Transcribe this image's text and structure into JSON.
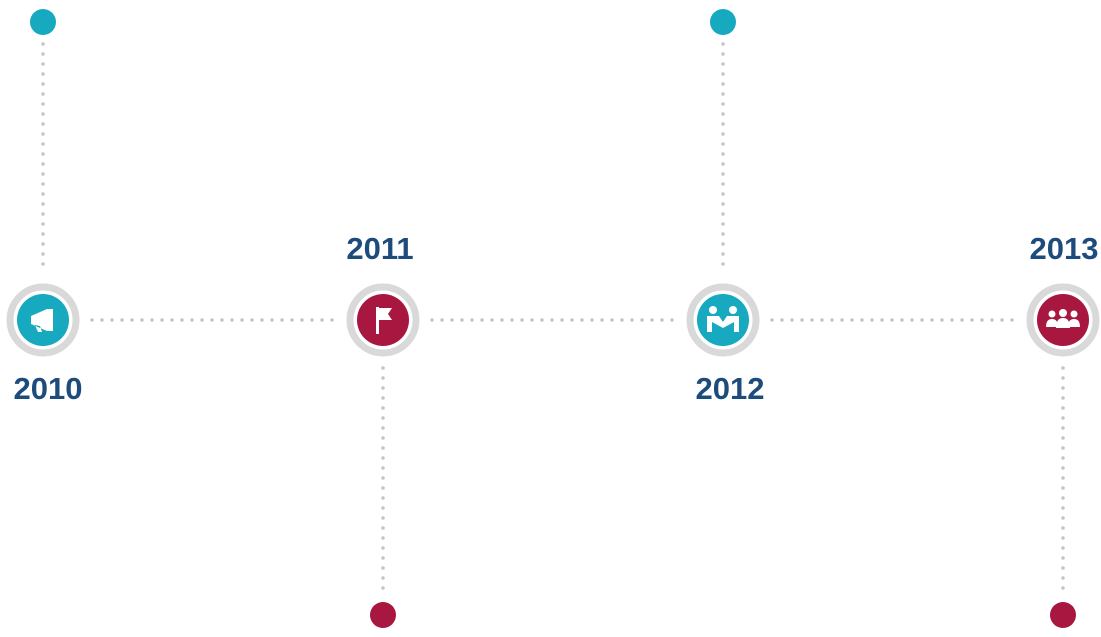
{
  "nodes": [
    {
      "label": "2010"
    },
    {
      "label": "2011"
    },
    {
      "label": "2012"
    },
    {
      "label": "2013"
    }
  ]
}
